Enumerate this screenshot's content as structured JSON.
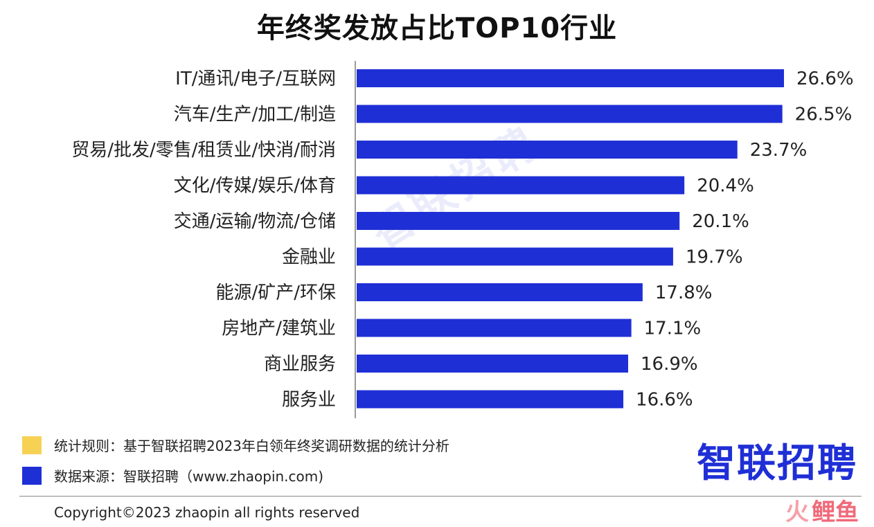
{
  "title": "年终奖发放占比TOP10行业",
  "chart_data": {
    "type": "bar",
    "orientation": "horizontal",
    "title": "年终奖发放占比TOP10行业",
    "categories": [
      "IT/通讯/电子/互联网",
      "汽车/生产/加工/制造",
      "贸易/批发/零售/租赁业/快消/耐消",
      "文化/传媒/娱乐/体育",
      "交通/运输/物流/仓储",
      "金融业",
      "能源/矿产/环保",
      "房地产/建筑业",
      "商业服务",
      "服务业"
    ],
    "values": [
      26.6,
      26.5,
      23.7,
      20.4,
      20.1,
      19.7,
      17.8,
      17.1,
      16.9,
      16.6
    ],
    "value_labels": [
      "26.6%",
      "26.5%",
      "23.7%",
      "20.4%",
      "20.1%",
      "19.7%",
      "17.8%",
      "17.1%",
      "16.9%",
      "16.6%"
    ],
    "unit": "%",
    "xlim": [
      0,
      28
    ],
    "grid": false,
    "bar_color": "#1f2fd6"
  },
  "watermark": "智联招聘",
  "legend": [
    {
      "label": "统计规则：基于智联招聘2023年白领年终奖调研数据的统计分析",
      "color": "#f7d154"
    },
    {
      "label": "数据来源：智联招聘（www.zhaopin.com)",
      "color": "#1f2fd6"
    }
  ],
  "brand": "智联招聘",
  "copyright": "Copyright©2023 zhaopin all rights reserved",
  "corner_watermark": {
    "x": "火",
    "text": "鲤鱼"
  }
}
